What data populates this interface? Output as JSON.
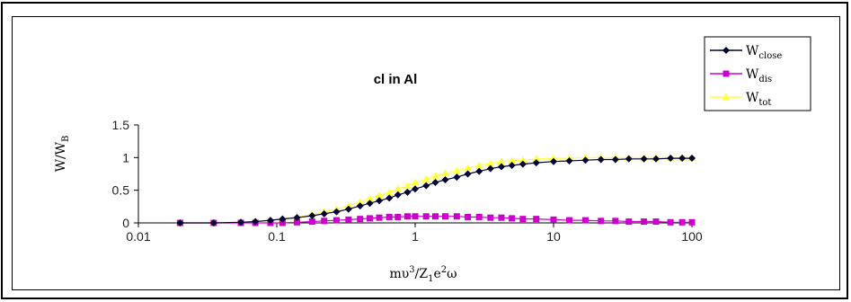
{
  "chart_data": {
    "type": "line",
    "title": "cl in Al",
    "xlabel": {
      "base": "mυ",
      "sup1": "3",
      "mid": "/Z",
      "sub1": "1",
      "e": "e",
      "sup2": "2",
      "end": "ω"
    },
    "ylabel": {
      "base": "W/W",
      "sub": "B"
    },
    "x_scale": "log",
    "xlim": [
      0.01,
      100
    ],
    "ylim": [
      0,
      1.5
    ],
    "x_ticks": [
      0.01,
      0.1,
      1,
      10,
      100
    ],
    "x_tick_labels": [
      "0.01",
      "0.1",
      "1",
      "10",
      "100"
    ],
    "y_ticks": [
      0,
      0.5,
      1,
      1.5
    ],
    "y_tick_labels": [
      "0",
      "0.5",
      "1",
      "1.5"
    ],
    "legend_position": "top-right",
    "x": [
      0.02,
      0.035,
      0.055,
      0.07,
      0.09,
      0.11,
      0.14,
      0.18,
      0.22,
      0.27,
      0.33,
      0.4,
      0.47,
      0.55,
      0.65,
      0.75,
      0.88,
      1.0,
      1.2,
      1.4,
      1.65,
      2.0,
      2.4,
      2.9,
      3.5,
      4.2,
      5.0,
      6.0,
      7.5,
      10,
      13,
      17,
      22,
      28,
      35,
      45,
      55,
      70,
      85,
      100
    ],
    "series": [
      {
        "name": "W_close",
        "label_base": "W",
        "label_sub": "close",
        "color": "#000033",
        "marker": "diamond",
        "values": [
          0.0,
          0.0,
          0.01,
          0.02,
          0.04,
          0.06,
          0.08,
          0.11,
          0.14,
          0.17,
          0.21,
          0.26,
          0.3,
          0.34,
          0.38,
          0.43,
          0.47,
          0.52,
          0.57,
          0.62,
          0.66,
          0.7,
          0.75,
          0.79,
          0.83,
          0.86,
          0.88,
          0.9,
          0.92,
          0.94,
          0.95,
          0.96,
          0.97,
          0.97,
          0.98,
          0.98,
          0.98,
          0.99,
          0.99,
          0.99
        ]
      },
      {
        "name": "W_dis",
        "label_base": "W",
        "label_sub": "dis",
        "color": "#cc00cc",
        "marker": "square",
        "values": [
          0.0,
          0.0,
          0.0,
          0.0,
          0.0,
          0.0,
          0.01,
          0.02,
          0.03,
          0.04,
          0.05,
          0.06,
          0.07,
          0.08,
          0.09,
          0.09,
          0.1,
          0.1,
          0.1,
          0.1,
          0.1,
          0.1,
          0.09,
          0.09,
          0.08,
          0.08,
          0.07,
          0.06,
          0.06,
          0.05,
          0.04,
          0.04,
          0.03,
          0.03,
          0.02,
          0.02,
          0.02,
          0.01,
          0.01,
          0.01
        ]
      },
      {
        "name": "W_tot",
        "label_base": "W",
        "label_sub": "tot",
        "color": "#ffff44",
        "marker": "triangle",
        "values": [
          0.0,
          0.0,
          0.01,
          0.02,
          0.04,
          0.06,
          0.09,
          0.13,
          0.17,
          0.21,
          0.26,
          0.32,
          0.37,
          0.42,
          0.47,
          0.52,
          0.57,
          0.62,
          0.67,
          0.72,
          0.76,
          0.8,
          0.84,
          0.88,
          0.91,
          0.94,
          0.95,
          0.96,
          0.98,
          0.99,
          0.99,
          1.0,
          1.0,
          1.0,
          1.0,
          1.0,
          1.0,
          1.0,
          1.0,
          1.0
        ]
      }
    ]
  }
}
